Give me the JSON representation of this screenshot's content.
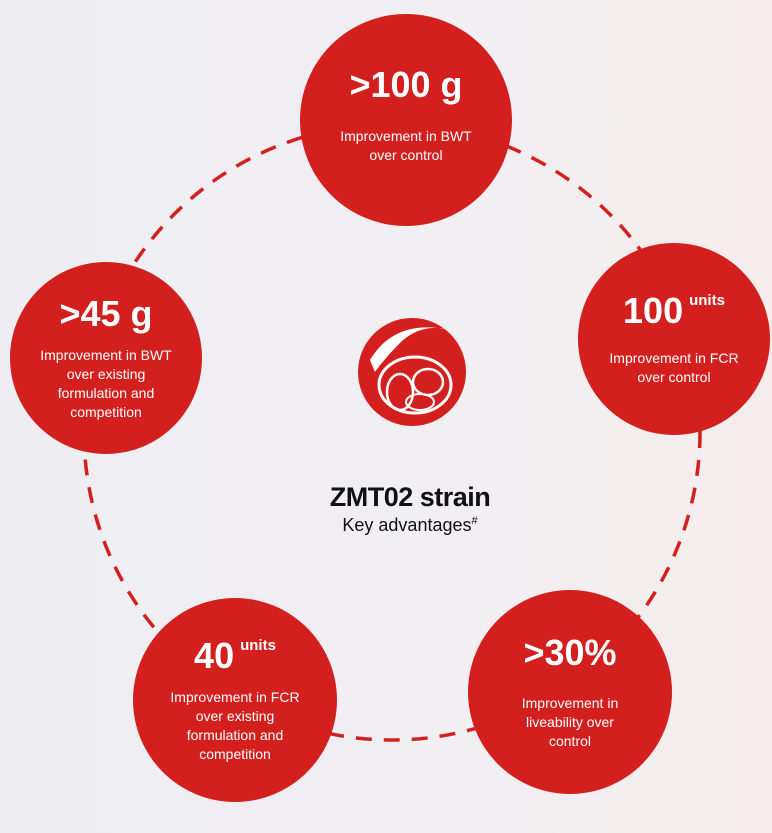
{
  "center": {
    "title": "ZMT02 strain",
    "subtitle": "Key advantages",
    "subtitle_mark": "#"
  },
  "nodes": [
    {
      "headline": ">100 g",
      "description": "Improvement in BWT over control"
    },
    {
      "headline": "100",
      "unit": "units",
      "description": "Improvement in FCR over control"
    },
    {
      "headline": ">30%",
      "description": "Improvement in liveability over control"
    },
    {
      "headline": "40",
      "unit": "units",
      "description": "Improvement in FCR over existing formulation and competition"
    },
    {
      "headline": ">45 g",
      "description": "Improvement in BWT over existing formulation and competition"
    }
  ]
}
